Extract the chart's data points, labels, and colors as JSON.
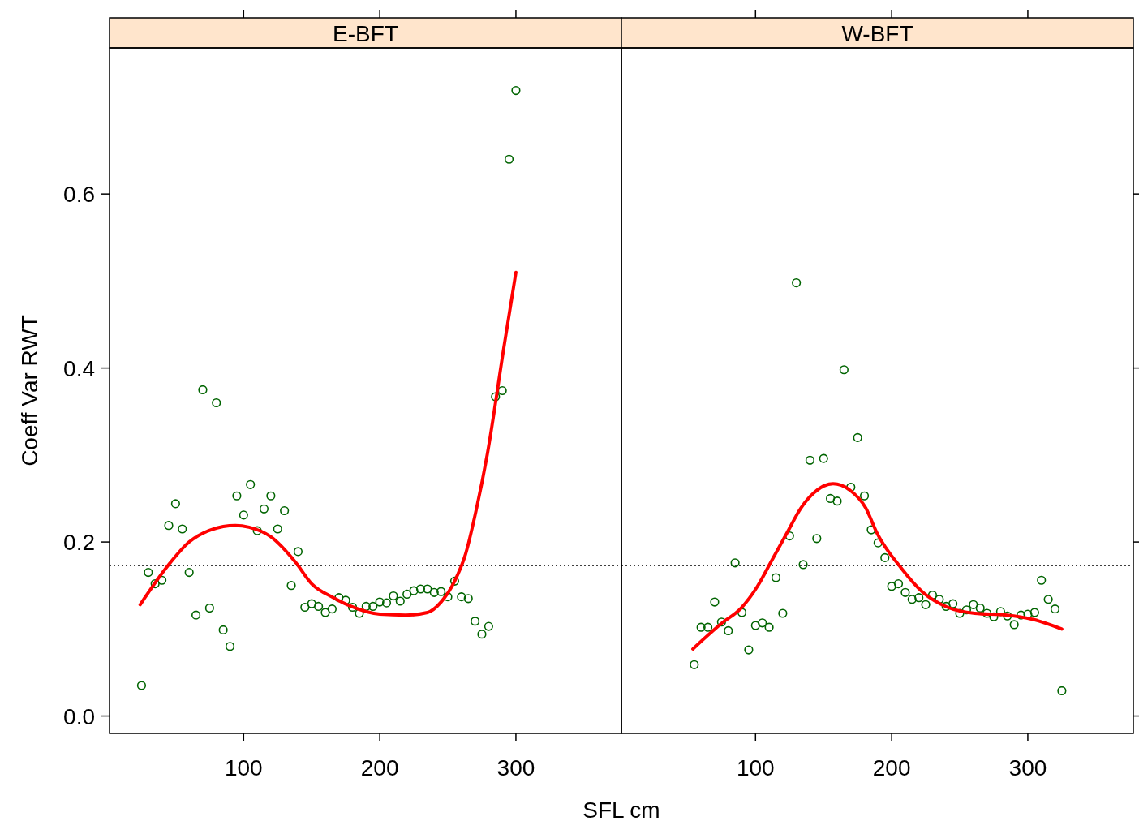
{
  "chart_data": [
    {
      "type": "scatter",
      "title": "E-BFT",
      "xlabel": "SFL cm",
      "ylabel": "Coeff Var RWT",
      "xlim": [
        1.5,
        377.5
      ],
      "ylim": [
        -0.02,
        0.768
      ],
      "xticks": [
        100,
        200,
        300
      ],
      "yticks": [
        {
          "value": 0,
          "label": "0.0"
        },
        0.2,
        0.4,
        0.6
      ],
      "ref_lines": [
        {
          "axis": "y",
          "value": 0.173,
          "line_style": "dotted",
          "color": "#000000"
        }
      ],
      "series": [
        {
          "marker": "circle",
          "color": "#006400",
          "x": [
            25,
            30,
            35,
            40,
            45,
            50,
            55,
            60,
            65,
            70,
            75,
            80,
            85,
            90,
            95,
            100,
            105,
            110,
            115,
            120,
            125,
            130,
            135,
            140,
            145,
            150,
            155,
            160,
            165,
            170,
            175,
            180,
            185,
            190,
            195,
            200,
            205,
            210,
            215,
            220,
            225,
            230,
            235,
            240,
            245,
            250,
            255,
            260,
            265,
            270,
            275,
            280,
            285,
            290,
            295,
            300
          ],
          "values": [
            0.035,
            0.165,
            0.152,
            0.156,
            0.219,
            0.244,
            0.215,
            0.165,
            0.116,
            0.375,
            0.124,
            0.36,
            0.099,
            0.08,
            0.253,
            0.231,
            0.266,
            0.213,
            0.238,
            0.253,
            0.215,
            0.236,
            0.15,
            0.189,
            0.125,
            0.129,
            0.126,
            0.119,
            0.123,
            0.136,
            0.133,
            0.125,
            0.118,
            0.126,
            0.126,
            0.131,
            0.13,
            0.138,
            0.132,
            0.14,
            0.144,
            0.146,
            0.146,
            0.142,
            0.143,
            0.137,
            0.155,
            0.137,
            0.135,
            0.109,
            0.094,
            0.103,
            0.367,
            0.374,
            0.64,
            0.719
          ]
        },
        {
          "type": "line",
          "color": "#ff0000",
          "line_style": "solid",
          "x": [
            24,
            44.5,
            60,
            76,
            94,
            104,
            120,
            138,
            150,
            166,
            179,
            200,
            219,
            235,
            245,
            255,
            263,
            271,
            279,
            291,
            300
          ],
          "values": [
            0.128,
            0.173,
            0.2,
            0.214,
            0.219,
            0.217,
            0.206,
            0.177,
            0.152,
            0.136,
            0.126,
            0.117,
            0.116,
            0.119,
            0.131,
            0.155,
            0.186,
            0.238,
            0.301,
            0.422,
            0.51
          ]
        }
      ]
    },
    {
      "type": "scatter",
      "title": "W-BFT",
      "xlim": [
        1.5,
        377.5
      ],
      "ylim": [
        -0.02,
        0.768
      ],
      "xticks": [
        100,
        200,
        300
      ],
      "yticks": [
        0,
        0.2,
        0.4,
        0.6
      ],
      "tick_labels": "x",
      "ref_lines": [
        {
          "axis": "y",
          "value": 0.173,
          "line_style": "dotted",
          "color": "#000000"
        }
      ],
      "series": [
        {
          "marker": "circle",
          "color": "#006400",
          "x": [
            55,
            60,
            65,
            70,
            75,
            80,
            85,
            90,
            95,
            100,
            105,
            110,
            115,
            120,
            125,
            130,
            135,
            140,
            145,
            150,
            155,
            160,
            165,
            170,
            175,
            180,
            185,
            190,
            195,
            200,
            205,
            210,
            215,
            220,
            225,
            230,
            235,
            240,
            245,
            250,
            255,
            260,
            265,
            270,
            275,
            280,
            285,
            290,
            295,
            300,
            305,
            310,
            315,
            320,
            325
          ],
          "values": [
            0.059,
            0.102,
            0.102,
            0.131,
            0.108,
            0.098,
            0.176,
            0.119,
            0.076,
            0.104,
            0.107,
            0.102,
            0.159,
            0.118,
            0.207,
            0.498,
            0.174,
            0.294,
            0.204,
            0.296,
            0.25,
            0.247,
            0.398,
            0.263,
            0.32,
            0.253,
            0.214,
            0.199,
            0.182,
            0.149,
            0.152,
            0.142,
            0.134,
            0.136,
            0.128,
            0.139,
            0.134,
            0.126,
            0.129,
            0.118,
            0.122,
            0.128,
            0.124,
            0.118,
            0.114,
            0.12,
            0.115,
            0.105,
            0.116,
            0.117,
            0.119,
            0.156,
            0.134,
            0.123,
            0.029
          ]
        },
        {
          "type": "line",
          "color": "#ff0000",
          "line_style": "solid",
          "x": [
            54,
            75.5,
            89.4,
            101.4,
            111.3,
            123.3,
            133.3,
            143.2,
            157,
            169,
            181,
            189,
            207,
            223,
            241,
            261,
            284.5,
            304,
            325
          ],
          "values": [
            0.077,
            0.107,
            0.124,
            0.149,
            0.177,
            0.211,
            0.239,
            0.257,
            0.267,
            0.26,
            0.239,
            0.211,
            0.17,
            0.142,
            0.125,
            0.118,
            0.116,
            0.111,
            0.1
          ]
        }
      ]
    }
  ]
}
